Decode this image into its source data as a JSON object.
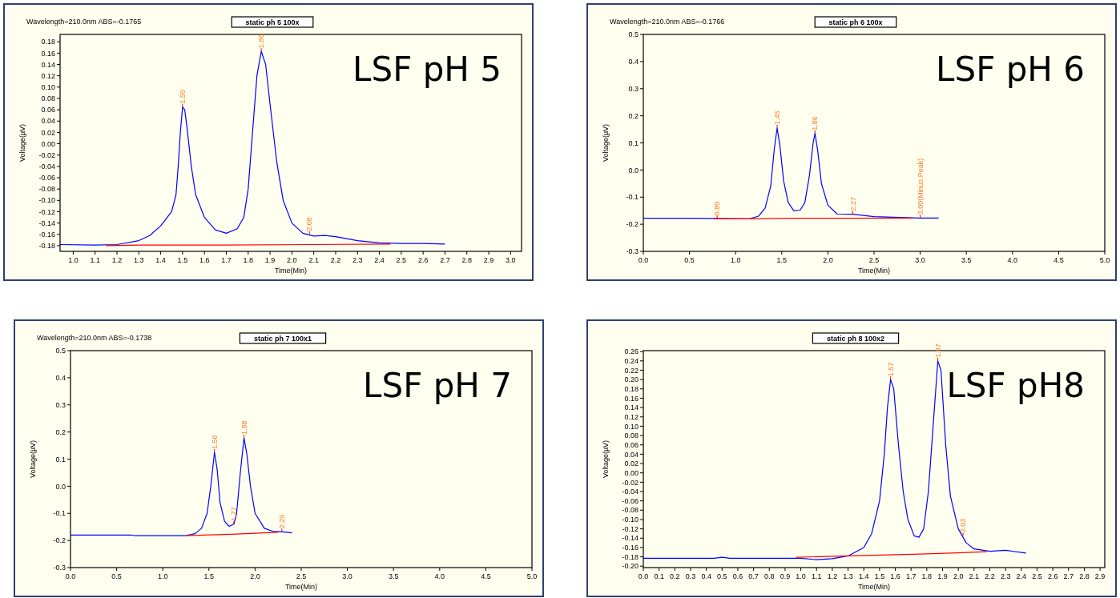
{
  "chart_data": [
    {
      "type": "line",
      "title": "static ph 5 100x",
      "subtitle": "Wavelength=210.0nm ABS=-0.1765",
      "xlabel": "Time(Min)",
      "ylabel": "Voltage(µV)",
      "marker": "none",
      "line_style": "solid",
      "xlim": [
        0.94,
        3.05
      ],
      "xticks": [
        {
          "value": 1,
          "label": "1.0"
        },
        1.1,
        1.2,
        1.3,
        1.4,
        1.5,
        1.6,
        1.7,
        1.8,
        1.9,
        {
          "value": 2,
          "label": "2.0"
        },
        2.1,
        2.2,
        2.3,
        2.4,
        2.5,
        2.6,
        2.7,
        2.8,
        2.9,
        {
          "value": 3,
          "label": "3.0"
        }
      ],
      "ylim": [
        -0.19,
        0.193
      ],
      "yticks": [
        -0.18,
        -0.16,
        -0.14,
        -0.12,
        {
          "value": -0.1,
          "label": "-0.10"
        },
        -0.08,
        -0.06,
        -0.04,
        -0.02,
        {
          "value": 0,
          "label": "0.00"
        },
        0.02,
        0.04,
        0.06,
        0.08,
        {
          "value": 0.1,
          "label": "0.10"
        },
        0.12,
        0.14,
        0.16,
        0.18
      ],
      "series": [
        {
          "color": "#0000ff",
          "x": [
            0.94,
            1.1,
            1.2,
            1.3,
            1.35,
            1.4,
            1.45,
            1.47,
            1.48,
            1.49,
            1.5,
            1.51,
            1.52,
            1.54,
            1.56,
            1.6,
            1.65,
            1.7,
            1.75,
            1.78,
            1.8,
            1.82,
            1.84,
            1.86,
            1.88,
            1.9,
            1.93,
            1.96,
            2.0,
            2.05,
            2.1,
            2.15,
            2.2,
            2.3,
            2.4,
            2.5,
            2.6,
            2.7
          ],
          "values": [
            -0.178,
            -0.179,
            -0.178,
            -0.171,
            -0.162,
            -0.145,
            -0.12,
            -0.09,
            -0.04,
            0.02,
            0.065,
            0.06,
            0.03,
            -0.04,
            -0.09,
            -0.13,
            -0.152,
            -0.158,
            -0.15,
            -0.13,
            -0.08,
            0.02,
            0.12,
            0.163,
            0.14,
            0.07,
            -0.03,
            -0.1,
            -0.14,
            -0.158,
            -0.163,
            -0.162,
            -0.164,
            -0.171,
            -0.175,
            -0.176,
            -0.176,
            -0.177
          ]
        },
        {
          "color": "#ff0000",
          "x": [
            1.15,
            1.3,
            1.68,
            2.08,
            2.45
          ],
          "values": [
            -0.18,
            -0.179,
            -0.179,
            -0.178,
            -0.177
          ]
        }
      ],
      "annotations": [
        "LSF pH 5",
        {
          "text": "1.50",
          "x": 1.5,
          "y": 0.065
        },
        {
          "text": "1.86",
          "x": 1.86,
          "y": 0.163
        },
        {
          "text": "2.08",
          "x": 2.08,
          "y": -0.16
        }
      ]
    },
    {
      "type": "line",
      "title": "static ph 6 100x",
      "subtitle": "Wavelength=210.0nm ABS=-0.1766",
      "xlabel": "Time(Min)",
      "ylabel": "Voltage(µV)",
      "marker": "none",
      "line_style": "solid",
      "xlim": [
        0,
        5
      ],
      "xticks": [
        {
          "value": 0,
          "label": "0.0"
        },
        0.5,
        {
          "value": 1,
          "label": "1.0"
        },
        1.5,
        {
          "value": 2,
          "label": "2.0"
        },
        2.5,
        {
          "value": 3,
          "label": "3.0"
        },
        3.5,
        {
          "value": 4,
          "label": "4.0"
        },
        4.5,
        {
          "value": 5,
          "label": "5.0"
        }
      ],
      "ylim": [
        -0.3,
        0.5
      ],
      "yticks": [
        -0.3,
        -0.2,
        -0.1,
        {
          "value": 0,
          "label": "0.0"
        },
        0.1,
        0.2,
        0.3,
        0.4,
        0.5
      ],
      "series": [
        {
          "color": "#0000ff",
          "x": [
            0,
            0.5,
            1.15,
            1.25,
            1.32,
            1.38,
            1.42,
            1.45,
            1.48,
            1.52,
            1.57,
            1.63,
            1.7,
            1.75,
            1.8,
            1.84,
            1.86,
            1.89,
            1.93,
            2.0,
            2.1,
            2.27,
            2.5,
            3.0,
            3.2
          ],
          "values": [
            -0.178,
            -0.178,
            -0.18,
            -0.17,
            -0.14,
            -0.06,
            0.08,
            0.155,
            0.09,
            -0.04,
            -0.12,
            -0.15,
            -0.148,
            -0.12,
            -0.02,
            0.1,
            0.135,
            0.07,
            -0.05,
            -0.13,
            -0.162,
            -0.163,
            -0.172,
            -0.177,
            -0.177
          ]
        },
        {
          "color": "#ff0000",
          "x": [
            0.76,
            1.1,
            1.66,
            2.2,
            2.92
          ],
          "values": [
            -0.18,
            -0.18,
            -0.178,
            -0.178,
            -0.177
          ]
        }
      ],
      "annotations": [
        "LSF pH 6",
        {
          "text": "0.80",
          "x": 0.8,
          "y": -0.18
        },
        {
          "text": "1.45",
          "x": 1.45,
          "y": 0.155
        },
        {
          "text": "1.86",
          "x": 1.86,
          "y": 0.135
        },
        {
          "text": "2.27",
          "x": 2.27,
          "y": -0.163
        },
        {
          "text": "3.00(Minus Peak)",
          "x": 3.0,
          "y": -0.177
        }
      ]
    },
    {
      "type": "line",
      "title": "static ph 7 100x1",
      "subtitle": "Wavelength=210.0nm ABS=-0.1738",
      "xlabel": "Time(Min)",
      "ylabel": "Voltage(µV)",
      "marker": "none",
      "line_style": "solid",
      "xlim": [
        0,
        5
      ],
      "xticks": [
        {
          "value": 0,
          "label": "0.0"
        },
        0.5,
        {
          "value": 1,
          "label": "1.0"
        },
        1.5,
        {
          "value": 2,
          "label": "2.0"
        },
        2.5,
        {
          "value": 3,
          "label": "3.0"
        },
        3.5,
        {
          "value": 4,
          "label": "4.0"
        },
        4.5,
        {
          "value": 5,
          "label": "5.0"
        }
      ],
      "ylim": [
        -0.3,
        0.5
      ],
      "yticks": [
        -0.3,
        -0.2,
        -0.1,
        {
          "value": 0,
          "label": "0.0"
        },
        0.1,
        0.2,
        0.3,
        0.4,
        0.5
      ],
      "series": [
        {
          "color": "#0000ff",
          "x": [
            0,
            0.65,
            0.7,
            1.25,
            1.35,
            1.42,
            1.48,
            1.52,
            1.56,
            1.59,
            1.62,
            1.67,
            1.72,
            1.77,
            1.8,
            1.84,
            1.88,
            1.91,
            1.95,
            2.0,
            2.1,
            2.2,
            2.3,
            2.4
          ],
          "values": [
            -0.18,
            -0.18,
            -0.182,
            -0.182,
            -0.175,
            -0.155,
            -0.1,
            0.0,
            0.125,
            0.06,
            -0.06,
            -0.13,
            -0.148,
            -0.14,
            -0.1,
            0.05,
            0.178,
            0.12,
            0.0,
            -0.1,
            -0.155,
            -0.167,
            -0.168,
            -0.172
          ]
        },
        {
          "color": "#ff0000",
          "x": [
            1.25,
            1.75,
            2.25
          ],
          "values": [
            -0.182,
            -0.177,
            -0.17
          ]
        }
      ],
      "annotations": [
        "LSF pH 7",
        {
          "text": "1.56",
          "x": 1.56,
          "y": 0.125
        },
        {
          "text": "1.88",
          "x": 1.88,
          "y": 0.178
        },
        {
          "text": "1.77",
          "x": 1.77,
          "y": -0.14
        },
        {
          "text": "2.29",
          "x": 2.29,
          "y": -0.168
        }
      ]
    },
    {
      "type": "line",
      "title": "static ph 8 100x2",
      "xlabel": "Time(Min)",
      "ylabel": "Voltage(µV)",
      "marker": "none",
      "line_style": "solid",
      "xlim": [
        0,
        2.93
      ],
      "xticks": [
        {
          "value": 0,
          "label": "0.0"
        },
        0.1,
        0.2,
        0.3,
        0.4,
        0.5,
        0.6,
        0.7,
        0.8,
        0.9,
        {
          "value": 1,
          "label": "1.0"
        },
        1.1,
        1.2,
        1.3,
        1.4,
        1.5,
        1.6,
        1.7,
        1.8,
        1.9,
        {
          "value": 2,
          "label": "2.0"
        },
        2.1,
        2.2,
        2.3,
        2.4,
        2.5,
        2.6,
        2.7,
        2.8,
        2.9
      ],
      "ylim": [
        -0.203,
        0.262
      ],
      "yticks": [
        {
          "value": -0.2,
          "label": "-0.20"
        },
        -0.18,
        -0.16,
        -0.14,
        -0.12,
        {
          "value": -0.1,
          "label": "-0.10"
        },
        -0.08,
        -0.06,
        -0.04,
        -0.02,
        {
          "value": 0,
          "label": "0.00"
        },
        0.02,
        0.04,
        0.06,
        0.08,
        {
          "value": 0.1,
          "label": "0.10"
        },
        0.12,
        0.14,
        0.16,
        0.18,
        {
          "value": 0.2,
          "label": "0.20"
        },
        0.22,
        0.24,
        0.26
      ],
      "series": [
        {
          "color": "#0000ff",
          "x": [
            0,
            0.45,
            0.5,
            0.55,
            1.0,
            1.1,
            1.2,
            1.3,
            1.4,
            1.45,
            1.5,
            1.53,
            1.55,
            1.57,
            1.59,
            1.62,
            1.65,
            1.68,
            1.72,
            1.75,
            1.78,
            1.81,
            1.84,
            1.87,
            1.89,
            1.92,
            1.95,
            2.0,
            2.05,
            2.1,
            2.2,
            2.3,
            2.43
          ],
          "values": [
            -0.183,
            -0.183,
            -0.181,
            -0.183,
            -0.183,
            -0.186,
            -0.184,
            -0.178,
            -0.16,
            -0.13,
            -0.06,
            0.04,
            0.14,
            0.2,
            0.18,
            0.06,
            -0.04,
            -0.1,
            -0.135,
            -0.138,
            -0.12,
            -0.04,
            0.1,
            0.24,
            0.22,
            0.06,
            -0.05,
            -0.12,
            -0.15,
            -0.163,
            -0.168,
            -0.166,
            -0.172
          ]
        },
        {
          "color": "#ff0000",
          "x": [
            0.97,
            1.3,
            1.76,
            2.03,
            2.18
          ],
          "values": [
            -0.181,
            -0.178,
            -0.174,
            -0.171,
            -0.169
          ]
        }
      ],
      "annotations": [
        "LSF pH8",
        {
          "text": "1.57",
          "x": 1.57,
          "y": 0.2
        },
        {
          "text": "1.87",
          "x": 1.87,
          "y": 0.24
        },
        {
          "text": "2.03",
          "x": 2.03,
          "y": -0.135
        }
      ]
    }
  ]
}
